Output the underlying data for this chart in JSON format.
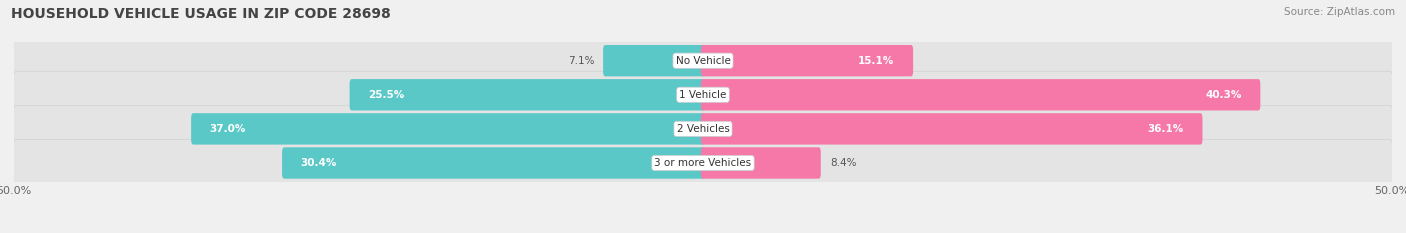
{
  "title": "HOUSEHOLD VEHICLE USAGE IN ZIP CODE 28698",
  "source": "Source: ZipAtlas.com",
  "categories": [
    "No Vehicle",
    "1 Vehicle",
    "2 Vehicles",
    "3 or more Vehicles"
  ],
  "owner_values": [
    7.1,
    25.5,
    37.0,
    30.4
  ],
  "renter_values": [
    15.1,
    40.3,
    36.1,
    8.4
  ],
  "owner_color": "#5bc8c8",
  "renter_color": "#f578a8",
  "axis_limit": 50.0,
  "bg_color": "#f0f0f0",
  "row_bg_color": "#e4e4e4",
  "title_fontsize": 10,
  "source_fontsize": 7.5,
  "value_fontsize": 7.5,
  "cat_fontsize": 7.5,
  "tick_fontsize": 8
}
